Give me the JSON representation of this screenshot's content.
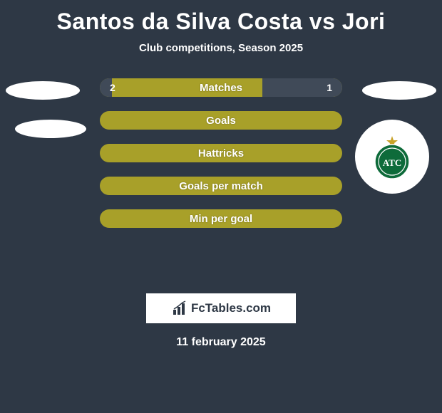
{
  "colors": {
    "background": "#2e3845",
    "bar_background": "#a8a029",
    "bar_fill": "#404a58",
    "text": "#ffffff",
    "watermark_bg": "#ffffff",
    "watermark_text": "#2e3845",
    "crest_green": "#0e6b3a",
    "crest_star": "#c9a227"
  },
  "title": "Santos da Silva Costa vs Jori",
  "subtitle": "Club competitions, Season 2025",
  "rows": [
    {
      "label": "Matches",
      "left_value": "2",
      "right_value": "1",
      "left_fill_pct": 5,
      "right_fill_pct": 33
    },
    {
      "label": "Goals",
      "left_value": "",
      "right_value": "",
      "left_fill_pct": 0,
      "right_fill_pct": 0
    },
    {
      "label": "Hattricks",
      "left_value": "",
      "right_value": "",
      "left_fill_pct": 0,
      "right_fill_pct": 0
    },
    {
      "label": "Goals per match",
      "left_value": "",
      "right_value": "",
      "left_fill_pct": 0,
      "right_fill_pct": 0
    },
    {
      "label": "Min per goal",
      "left_value": "",
      "right_value": "",
      "left_fill_pct": 0,
      "right_fill_pct": 0
    }
  ],
  "watermark": "FcTables.com",
  "date": "11 february 2025",
  "crest_letters": "ATC"
}
